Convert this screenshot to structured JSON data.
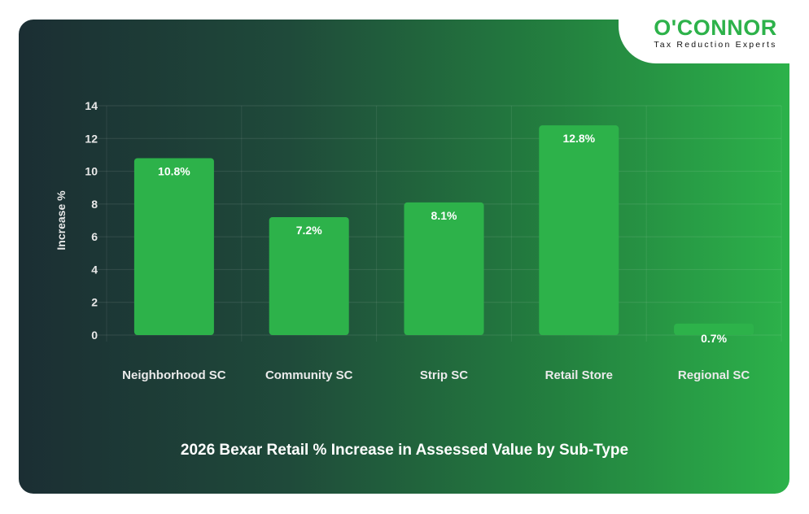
{
  "brand": {
    "name": "O'CONNOR",
    "tagline": "Tax Reduction Experts",
    "color": "#2db24a"
  },
  "chart_data": {
    "type": "bar",
    "title": "2026 Bexar Retail % Increase in Assessed Value by Sub-Type",
    "xlabel": "",
    "ylabel": "Increase %",
    "categories": [
      "Neighborhood SC",
      "Community SC",
      "Strip SC",
      "Retail Store",
      "Regional SC"
    ],
    "values": [
      10.8,
      7.2,
      8.1,
      12.8,
      0.7
    ],
    "data_labels": [
      "10.8%",
      "7.2%",
      "8.1%",
      "12.8%",
      "0.7%"
    ],
    "ylim": [
      0,
      14
    ],
    "yticks": [
      "0",
      "2",
      "4",
      "6",
      "8",
      "10",
      "12",
      "14"
    ],
    "grid": true,
    "bar_color": "#2db24a"
  }
}
